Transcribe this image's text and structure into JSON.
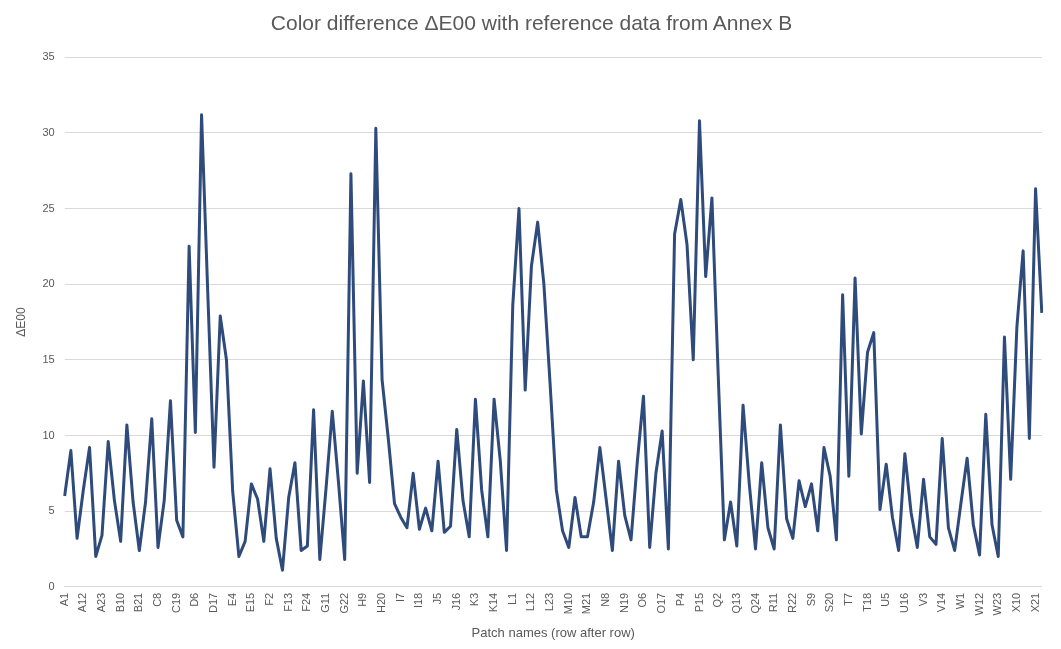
{
  "chart_data": {
    "type": "line",
    "title": "Color difference ΔE00 with reference data from Annex B",
    "xlabel": "Patch names (row after row)",
    "ylabel": "ΔE00",
    "categories": [
      "A1",
      null,
      null,
      "A12",
      null,
      null,
      "A23",
      null,
      null,
      "B10",
      null,
      null,
      "B21",
      null,
      null,
      "C8",
      null,
      null,
      "C19",
      null,
      null,
      "D6",
      null,
      null,
      "D17",
      null,
      null,
      "E4",
      null,
      null,
      "E15",
      null,
      null,
      "F2",
      null,
      null,
      "F13",
      null,
      null,
      "F24",
      null,
      null,
      "G11",
      null,
      null,
      "G22",
      null,
      null,
      "H9",
      null,
      null,
      "H20",
      null,
      null,
      "I7",
      null,
      null,
      "I18",
      null,
      null,
      "J5",
      null,
      null,
      "J16",
      null,
      null,
      "K3",
      null,
      null,
      "K14",
      null,
      null,
      "L1",
      null,
      null,
      "L12",
      null,
      null,
      "L23",
      null,
      null,
      "M10",
      null,
      null,
      "M21",
      null,
      null,
      "N8",
      null,
      null,
      "N19",
      null,
      null,
      "O6",
      null,
      null,
      "O17",
      null,
      null,
      "P4",
      null,
      null,
      "P15",
      null,
      null,
      "Q2",
      null,
      null,
      "Q13",
      null,
      null,
      "Q24",
      null,
      null,
      "R11",
      null,
      null,
      "R22",
      null,
      null,
      "S9",
      null,
      null,
      "S20",
      null,
      null,
      "T7",
      null,
      null,
      "T18",
      null,
      null,
      "U5",
      null,
      null,
      "U16",
      null,
      null,
      "V3",
      null,
      null,
      "V14",
      null,
      null,
      "W1",
      null,
      null,
      "W12",
      null,
      null,
      "W23",
      null,
      null,
      "X10",
      null,
      null,
      "X21",
      null
    ],
    "values": [
      6.0,
      9.0,
      3.2,
      6.4,
      9.2,
      2.0,
      3.4,
      9.6,
      5.7,
      3.0,
      10.7,
      5.6,
      2.4,
      5.6,
      11.1,
      2.6,
      5.7,
      12.3,
      4.4,
      3.3,
      22.5,
      10.2,
      31.2,
      19.4,
      7.9,
      17.9,
      15.0,
      6.3,
      2.0,
      3.0,
      6.8,
      5.8,
      3.0,
      7.8,
      3.2,
      1.1,
      5.9,
      8.2,
      2.4,
      2.7,
      11.7,
      1.8,
      6.5,
      11.6,
      6.9,
      1.8,
      27.3,
      7.5,
      13.6,
      6.9,
      30.3,
      13.7,
      9.8,
      5.5,
      4.6,
      3.9,
      7.5,
      3.8,
      5.2,
      3.7,
      8.3,
      3.6,
      4.0,
      10.4,
      5.7,
      3.3,
      12.4,
      6.4,
      3.3,
      12.4,
      8.3,
      2.4,
      18.6,
      25.0,
      13.0,
      21.2,
      24.1,
      20.0,
      13.4,
      6.4,
      3.7,
      2.6,
      5.9,
      3.3,
      3.3,
      5.6,
      9.2,
      5.8,
      2.4,
      8.3,
      4.7,
      3.1,
      8.2,
      12.6,
      2.6,
      7.5,
      10.3,
      2.5,
      23.3,
      25.6,
      22.6,
      15.0,
      30.8,
      20.5,
      25.7,
      14.1,
      3.1,
      5.6,
      2.7,
      12.0,
      6.8,
      2.5,
      8.2,
      3.9,
      2.5,
      10.7,
      4.5,
      3.2,
      7.0,
      5.3,
      6.8,
      3.7,
      9.2,
      7.3,
      3.1,
      19.3,
      7.3,
      20.4,
      10.1,
      15.5,
      16.8,
      5.1,
      8.1,
      4.6,
      2.4,
      8.8,
      4.9,
      2.6,
      7.1,
      3.3,
      2.8,
      9.8,
      3.9,
      2.4,
      5.5,
      8.5,
      4.1,
      2.1,
      11.4,
      4.1,
      2.0,
      16.5,
      7.1,
      17.2,
      22.2,
      9.8,
      26.3,
      18.1
    ],
    "color": "#2f4b7c",
    "ylim": [
      0,
      35
    ],
    "yticks": [
      0,
      5,
      10,
      15,
      20,
      25,
      30,
      35
    ],
    "grid": "y",
    "marker": "none"
  }
}
